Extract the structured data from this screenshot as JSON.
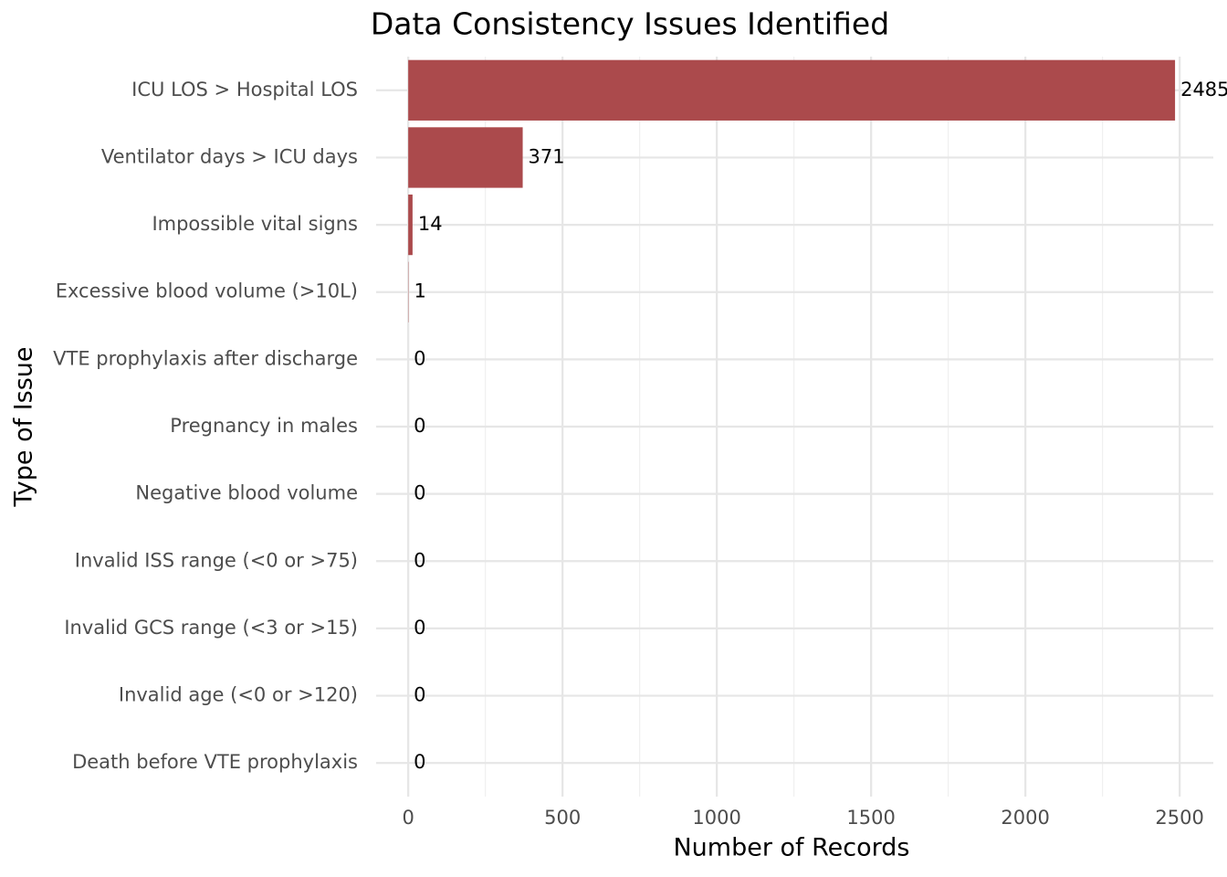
{
  "chart_data": {
    "type": "barh",
    "title": "Data Consistency Issues Identified",
    "xlabel": "Number of Records",
    "ylabel": "Type of Issue",
    "categories": [
      "ICU LOS > Hospital LOS",
      "Ventilator days > ICU days",
      "Impossible vital signs",
      "Excessive blood volume (>10L)",
      "VTE prophylaxis after discharge",
      "Pregnancy in males",
      "Negative blood volume",
      "Invalid ISS range (<0 or >75)",
      "Invalid GCS range (<3 or >15)",
      "Invalid age (<0 or >120)",
      "Death before VTE prophylaxis"
    ],
    "values": [
      2485,
      371,
      14,
      1,
      0,
      0,
      0,
      0,
      0,
      0,
      0
    ],
    "color": "#ab4a4c",
    "xlim": [
      -104,
      2609
    ],
    "xticks": [
      0,
      500,
      1000,
      1500,
      2000,
      2500
    ],
    "grid": true
  }
}
